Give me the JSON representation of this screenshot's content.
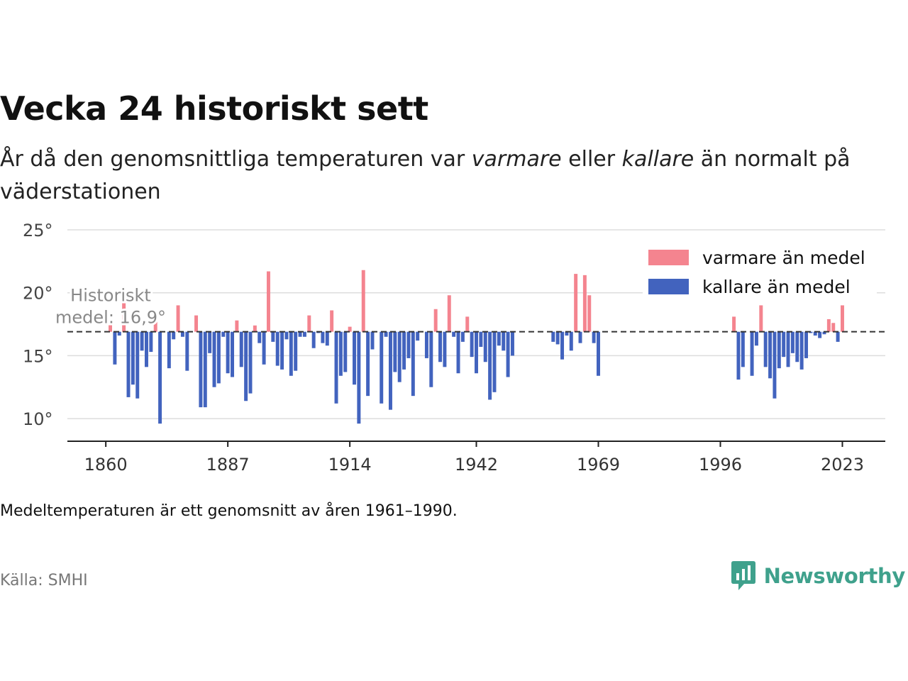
{
  "header": {
    "title": "Vecka 24 historiskt sett",
    "subtitle_pre": "År då den genomsnittliga temperaturen var ",
    "subtitle_warm": "varmare",
    "subtitle_mid": " eller ",
    "subtitle_cold": "kallare",
    "subtitle_post": " än normalt på väderstationen"
  },
  "footer": {
    "note": "Medeltemperaturen är ett genomsnitt av åren 1961–1990.",
    "source": "Källa: SMHI",
    "brand": "Newsworthy"
  },
  "colors": {
    "warm": "#f4848f",
    "cold": "#4263be",
    "brand": "#3fa18c"
  },
  "chart_data": {
    "type": "bar",
    "baseline": 16.9,
    "baseline_label": [
      "Historiskt",
      "medel: 16,9°"
    ],
    "ylim": [
      8.2,
      25
    ],
    "xlim": [
      1851.5,
      2032.5
    ],
    "yticks": [
      10,
      15,
      20,
      25
    ],
    "ytick_labels": [
      "10°",
      "15°",
      "20°",
      "25°"
    ],
    "xticks": [
      1860,
      1887,
      1914,
      1942,
      1969,
      1996,
      2023
    ],
    "xtick_labels": [
      "1860",
      "1887",
      "1914",
      "1942",
      "1969",
      "1996",
      "2023"
    ],
    "grid": true,
    "legend_position": "top-right",
    "series": [
      {
        "name": "varmare än medel",
        "color": "#f4848f"
      },
      {
        "name": "kallare än medel",
        "color": "#4263be"
      }
    ],
    "data": [
      [
        1861,
        17.5
      ],
      [
        1862,
        14.3
      ],
      [
        1863,
        16.6
      ],
      [
        1864,
        19.3
      ],
      [
        1865,
        11.7
      ],
      [
        1866,
        12.7
      ],
      [
        1867,
        11.6
      ],
      [
        1868,
        15.4
      ],
      [
        1869,
        14.1
      ],
      [
        1870,
        15.3
      ],
      [
        1871,
        17.7
      ],
      [
        1872,
        9.6
      ],
      [
        1874,
        14.0
      ],
      [
        1875,
        16.3
      ],
      [
        1876,
        19.0
      ],
      [
        1877,
        16.5
      ],
      [
        1878,
        13.8
      ],
      [
        1880,
        18.2
      ],
      [
        1881,
        10.9
      ],
      [
        1882,
        10.9
      ],
      [
        1883,
        15.2
      ],
      [
        1884,
        12.5
      ],
      [
        1885,
        12.8
      ],
      [
        1886,
        16.5
      ],
      [
        1887,
        13.6
      ],
      [
        1888,
        13.3
      ],
      [
        1889,
        17.8
      ],
      [
        1890,
        14.1
      ],
      [
        1891,
        11.4
      ],
      [
        1892,
        12.0
      ],
      [
        1893,
        17.4
      ],
      [
        1894,
        16.0
      ],
      [
        1895,
        14.3
      ],
      [
        1896,
        21.7
      ],
      [
        1897,
        16.1
      ],
      [
        1898,
        14.2
      ],
      [
        1899,
        13.9
      ],
      [
        1900,
        16.3
      ],
      [
        1901,
        13.4
      ],
      [
        1902,
        13.8
      ],
      [
        1903,
        16.5
      ],
      [
        1904,
        16.5
      ],
      [
        1905,
        18.2
      ],
      [
        1906,
        15.6
      ],
      [
        1907,
        16.8
      ],
      [
        1908,
        16.0
      ],
      [
        1909,
        15.8
      ],
      [
        1910,
        18.6
      ],
      [
        1911,
        11.2
      ],
      [
        1912,
        13.4
      ],
      [
        1913,
        13.7
      ],
      [
        1914,
        17.3
      ],
      [
        1915,
        12.7
      ],
      [
        1916,
        9.6
      ],
      [
        1917,
        21.8
      ],
      [
        1918,
        11.8
      ],
      [
        1919,
        15.5
      ],
      [
        1921,
        11.2
      ],
      [
        1922,
        16.5
      ],
      [
        1923,
        10.7
      ],
      [
        1924,
        13.7
      ],
      [
        1925,
        12.9
      ],
      [
        1926,
        13.9
      ],
      [
        1927,
        14.8
      ],
      [
        1928,
        11.8
      ],
      [
        1929,
        16.2
      ],
      [
        1931,
        14.8
      ],
      [
        1932,
        12.5
      ],
      [
        1933,
        18.7
      ],
      [
        1934,
        14.5
      ],
      [
        1935,
        14.1
      ],
      [
        1936,
        19.8
      ],
      [
        1937,
        16.5
      ],
      [
        1938,
        13.6
      ],
      [
        1939,
        16.1
      ],
      [
        1940,
        18.1
      ],
      [
        1941,
        14.9
      ],
      [
        1942,
        13.6
      ],
      [
        1943,
        15.7
      ],
      [
        1944,
        14.5
      ],
      [
        1945,
        11.5
      ],
      [
        1946,
        12.1
      ],
      [
        1947,
        15.8
      ],
      [
        1948,
        15.4
      ],
      [
        1949,
        13.3
      ],
      [
        1950,
        15.0
      ],
      [
        1959,
        16.1
      ],
      [
        1960,
        15.9
      ],
      [
        1961,
        14.7
      ],
      [
        1962,
        16.6
      ],
      [
        1963,
        15.4
      ],
      [
        1964,
        21.5
      ],
      [
        1965,
        16.0
      ],
      [
        1966,
        21.4
      ],
      [
        1967,
        19.8
      ],
      [
        1968,
        16.0
      ],
      [
        1969,
        13.4
      ],
      [
        1999,
        18.1
      ],
      [
        2000,
        13.1
      ],
      [
        2001,
        14.1
      ],
      [
        2003,
        13.4
      ],
      [
        2004,
        15.8
      ],
      [
        2005,
        19.0
      ],
      [
        2006,
        14.1
      ],
      [
        2007,
        13.2
      ],
      [
        2008,
        11.6
      ],
      [
        2009,
        14.0
      ],
      [
        2010,
        14.9
      ],
      [
        2011,
        14.1
      ],
      [
        2012,
        15.2
      ],
      [
        2013,
        14.5
      ],
      [
        2014,
        13.9
      ],
      [
        2015,
        14.8
      ],
      [
        2016,
        16.8
      ],
      [
        2017,
        16.6
      ],
      [
        2018,
        16.4
      ],
      [
        2019,
        16.7
      ],
      [
        2020,
        17.9
      ],
      [
        2021,
        17.6
      ],
      [
        2022,
        16.1
      ],
      [
        2023,
        19.0
      ]
    ]
  }
}
